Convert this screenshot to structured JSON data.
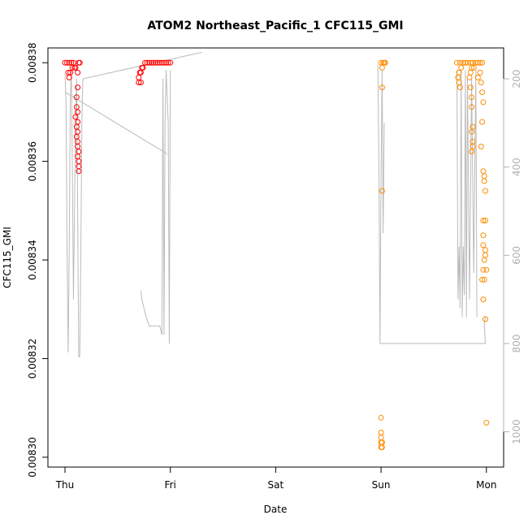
{
  "chart_data": {
    "type": "scatter",
    "title": "ATOM2 Northeast_Pacific_1 CFC115_GMI",
    "xlabel": "Date",
    "ylabel": "CFC115_GMI",
    "x_ticks": [
      "Thu",
      "Fri",
      "Sat",
      "Sun",
      "Mon"
    ],
    "x_range_days": [
      -0.25,
      4.17
    ],
    "y_range": [
      0.008298,
      0.008383
    ],
    "y_ticks": [
      0.0083,
      0.00832,
      0.00834,
      0.00836,
      0.00838
    ],
    "y_tick_labels": [
      "0.00830",
      "0.00832",
      "0.00834",
      "0.00836",
      "0.00838"
    ],
    "right_axis": {
      "label": "",
      "range": [
        1080,
        130
      ],
      "ticks": [
        200,
        400,
        600,
        800,
        1000
      ],
      "color": "#b0b0b0"
    },
    "grid": false,
    "colors": {
      "red": "#ff0000",
      "orange": "#ff8c00",
      "line": "#bbbbbb"
    },
    "series": [
      {
        "color": "red",
        "points": [
          [
            0.0,
            0.00838
          ],
          [
            0.02,
            0.00838
          ],
          [
            0.04,
            0.00838
          ],
          [
            0.06,
            0.00838
          ],
          [
            0.08,
            0.00838
          ],
          [
            0.03,
            0.008378
          ],
          [
            0.05,
            0.008378
          ],
          [
            0.07,
            0.008379
          ],
          [
            0.09,
            0.008379
          ],
          [
            0.04,
            0.008377
          ],
          [
            0.1,
            0.008379
          ],
          [
            0.12,
            0.008378
          ],
          [
            0.13,
            0.00838
          ],
          [
            0.14,
            0.00838
          ],
          [
            0.12,
            0.008375
          ],
          [
            0.11,
            0.008373
          ],
          [
            0.11,
            0.008371
          ],
          [
            0.1,
            0.008369
          ],
          [
            0.12,
            0.00837
          ],
          [
            0.12,
            0.008368
          ],
          [
            0.11,
            0.008367
          ],
          [
            0.12,
            0.008366
          ],
          [
            0.11,
            0.008365
          ],
          [
            0.12,
            0.008364
          ],
          [
            0.12,
            0.008363
          ],
          [
            0.13,
            0.008362
          ],
          [
            0.12,
            0.008361
          ],
          [
            0.13,
            0.00836
          ],
          [
            0.13,
            0.008359
          ],
          [
            0.13,
            0.008358
          ],
          [
            0.7,
            0.008376
          ],
          [
            0.7,
            0.008377
          ],
          [
            0.71,
            0.008378
          ],
          [
            0.72,
            0.008378
          ],
          [
            0.73,
            0.008379
          ],
          [
            0.74,
            0.008379
          ],
          [
            0.76,
            0.00838
          ],
          [
            0.78,
            0.00838
          ],
          [
            0.8,
            0.00838
          ],
          [
            0.82,
            0.00838
          ],
          [
            0.84,
            0.00838
          ],
          [
            0.86,
            0.00838
          ],
          [
            0.88,
            0.00838
          ],
          [
            0.9,
            0.00838
          ],
          [
            0.92,
            0.00838
          ],
          [
            0.94,
            0.00838
          ],
          [
            0.96,
            0.00838
          ],
          [
            0.98,
            0.00838
          ],
          [
            1.0,
            0.00838
          ],
          [
            0.72,
            0.008376
          ]
        ]
      },
      {
        "color": "orange",
        "points": [
          [
            3.0,
            0.00838
          ],
          [
            3.02,
            0.00838
          ],
          [
            3.03,
            0.00838
          ],
          [
            3.04,
            0.00838
          ],
          [
            3.01,
            0.008379
          ],
          [
            3.01,
            0.008375
          ],
          [
            3.01,
            0.008354
          ],
          [
            3.0,
            0.008308
          ],
          [
            3.0,
            0.008305
          ],
          [
            3.0,
            0.008304
          ],
          [
            3.0,
            0.008303
          ],
          [
            3.01,
            0.008303
          ],
          [
            3.0,
            0.008302
          ],
          [
            3.01,
            0.008302
          ],
          [
            3.72,
            0.00838
          ],
          [
            3.75,
            0.00838
          ],
          [
            3.78,
            0.00838
          ],
          [
            3.8,
            0.00838
          ],
          [
            3.82,
            0.00838
          ],
          [
            3.85,
            0.00838
          ],
          [
            3.87,
            0.00838
          ],
          [
            3.9,
            0.00838
          ],
          [
            3.92,
            0.00838
          ],
          [
            3.94,
            0.00838
          ],
          [
            3.96,
            0.00838
          ],
          [
            3.74,
            0.008378
          ],
          [
            3.74,
            0.008376
          ],
          [
            3.75,
            0.008375
          ],
          [
            3.73,
            0.008377
          ],
          [
            3.76,
            0.008379
          ],
          [
            3.84,
            0.008377
          ],
          [
            3.85,
            0.008378
          ],
          [
            3.86,
            0.008379
          ],
          [
            3.88,
            0.008379
          ],
          [
            3.85,
            0.008375
          ],
          [
            3.86,
            0.008373
          ],
          [
            3.86,
            0.008371
          ],
          [
            3.87,
            0.008367
          ],
          [
            3.86,
            0.008366
          ],
          [
            3.87,
            0.008364
          ],
          [
            3.86,
            0.008362
          ],
          [
            3.87,
            0.008363
          ],
          [
            3.92,
            0.008377
          ],
          [
            3.94,
            0.008378
          ],
          [
            3.95,
            0.008376
          ],
          [
            3.96,
            0.008374
          ],
          [
            3.97,
            0.008372
          ],
          [
            3.96,
            0.008368
          ],
          [
            3.95,
            0.008363
          ],
          [
            3.97,
            0.008358
          ],
          [
            3.98,
            0.008357
          ],
          [
            3.98,
            0.008356
          ],
          [
            3.99,
            0.008354
          ],
          [
            3.97,
            0.008348
          ],
          [
            3.99,
            0.008348
          ],
          [
            3.97,
            0.008345
          ],
          [
            3.98,
            0.00834
          ],
          [
            3.97,
            0.008338
          ],
          [
            3.99,
            0.008342
          ],
          [
            3.96,
            0.008336
          ],
          [
            3.98,
            0.008336
          ],
          [
            3.97,
            0.008343
          ],
          [
            3.99,
            0.008341
          ],
          [
            3.97,
            0.008332
          ],
          [
            4.0,
            0.008338
          ],
          [
            3.99,
            0.008328
          ],
          [
            4.0,
            0.008307
          ]
        ]
      }
    ]
  }
}
